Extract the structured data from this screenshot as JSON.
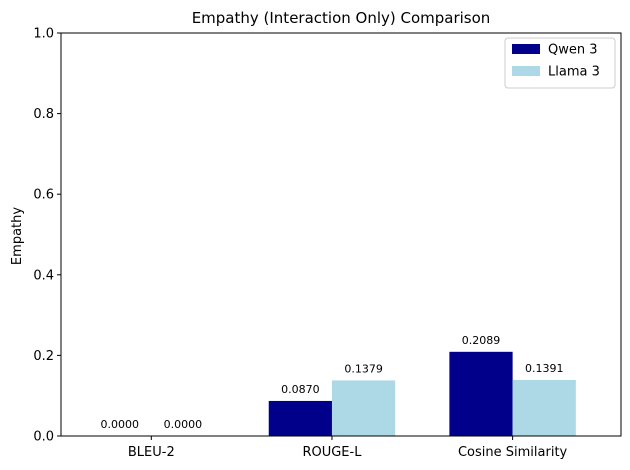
{
  "chart_data": {
    "type": "bar",
    "title": "Empathy (Interaction Only) Comparison",
    "xlabel": "",
    "ylabel": "Empathy",
    "categories": [
      "BLEU-2",
      "ROUGE-L",
      "Cosine Similarity"
    ],
    "ylim": [
      0,
      1.0
    ],
    "yticks": [
      "0.0",
      "0.2",
      "0.4",
      "0.6",
      "0.8",
      "1.0"
    ],
    "series": [
      {
        "name": "Qwen 3",
        "color": "#00008b",
        "values": [
          0.0,
          0.087,
          0.2089
        ],
        "labels": [
          "0.0000",
          "0.0870",
          "0.2089"
        ]
      },
      {
        "name": "Llama 3",
        "color": "#add8e6",
        "values": [
          0.0,
          0.1379,
          0.1391
        ],
        "labels": [
          "0.0000",
          "0.1379",
          "0.1391"
        ]
      }
    ],
    "legend_position": "top-right",
    "grid": false
  }
}
